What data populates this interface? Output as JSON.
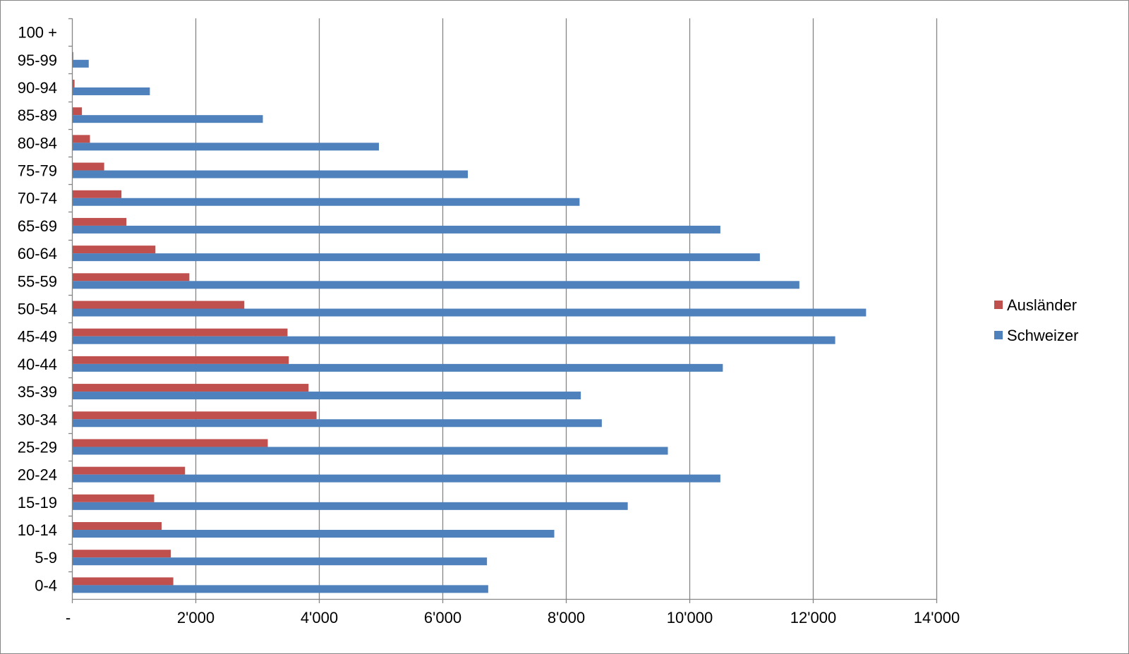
{
  "chart_data": {
    "type": "bar",
    "orientation": "horizontal",
    "categories": [
      "0-4",
      "5-9",
      "10-14",
      "15-19",
      "20-24",
      "25-29",
      "30-34",
      "35-39",
      "40-44",
      "45-49",
      "50-54",
      "55-59",
      "60-64",
      "65-69",
      "70-74",
      "75-79",
      "80-84",
      "85-89",
      "90-94",
      "95-99",
      "100 +"
    ],
    "series": [
      {
        "name": "Ausländer",
        "color": "#C0504D",
        "values": [
          1630,
          1590,
          1440,
          1320,
          1820,
          3160,
          3950,
          3820,
          3500,
          3480,
          2780,
          1890,
          1340,
          870,
          790,
          510,
          280,
          150,
          30,
          10,
          0
        ]
      },
      {
        "name": "Schweizer",
        "color": "#4F81BD",
        "values": [
          6730,
          6710,
          7800,
          8990,
          10490,
          9640,
          8570,
          8230,
          10530,
          12350,
          12850,
          11770,
          11130,
          10490,
          8210,
          6400,
          4960,
          3080,
          1250,
          260,
          0
        ]
      }
    ],
    "xlim": [
      0,
      14000
    ],
    "xticks": [
      0,
      2000,
      4000,
      6000,
      8000,
      10000,
      12000,
      14000
    ],
    "xtick_labels": [
      "-",
      "2'000",
      "4'000",
      "6'000",
      "8'000",
      "10'000",
      "12'000",
      "14'000"
    ],
    "grid": true,
    "legend_position": "right",
    "title": "",
    "xlabel": "",
    "ylabel": ""
  },
  "legend": {
    "items": [
      {
        "label": "Ausländer",
        "color": "#C0504D"
      },
      {
        "label": "Schweizer",
        "color": "#4F81BD"
      }
    ]
  },
  "colors": {
    "gridline": "#868686",
    "axis": "#868686",
    "frame": "#868686"
  }
}
